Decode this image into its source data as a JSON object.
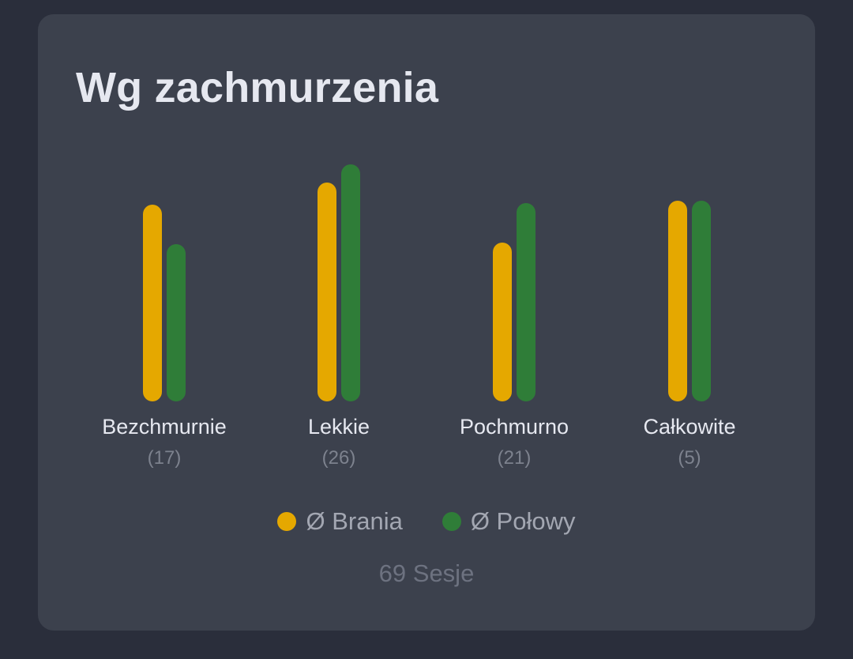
{
  "card": {
    "title": "Wg zachmurzenia"
  },
  "colors": {
    "brania": "#e5a800",
    "polowy": "#2f7d38",
    "background": "#2a2e3b",
    "card": "#3c414d"
  },
  "legend": {
    "items": [
      {
        "label": "Ø Brania",
        "color": "#e5a800"
      },
      {
        "label": "Ø Połowy",
        "color": "#2f7d38"
      }
    ]
  },
  "groups": [
    {
      "label": "Bezchmurnie",
      "count": "(17)"
    },
    {
      "label": "Lekkie",
      "count": "(26)"
    },
    {
      "label": "Pochmurno",
      "count": "(21)"
    },
    {
      "label": "Całkowite",
      "count": "(5)"
    }
  ],
  "footer": {
    "sessions": "69 Sesje"
  },
  "chart_data": {
    "type": "bar",
    "title": "Wg zachmurzenia",
    "categories": [
      "Bezchmurnie",
      "Lekkie",
      "Pochmurno",
      "Całkowite"
    ],
    "category_counts": [
      17,
      26,
      21,
      5
    ],
    "series": [
      {
        "name": "Ø Brania",
        "color": "#e5a800",
        "values": [
          249,
          277,
          201,
          254
        ]
      },
      {
        "name": "Ø Połowy",
        "color": "#2f7d38",
        "values": [
          199,
          300,
          251,
          254
        ]
      }
    ],
    "units": "relative bar height (px); no axis shown",
    "xlabel": "",
    "ylabel": "",
    "grid": false,
    "legend_position": "bottom",
    "footer": "69 Sesje"
  }
}
